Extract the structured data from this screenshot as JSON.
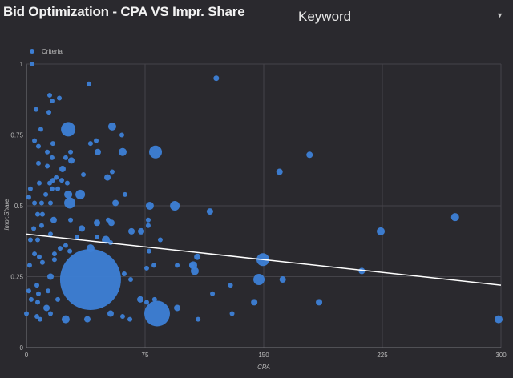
{
  "header": {
    "title": "Bid Optimization - CPA VS Impr. Share"
  },
  "selector": {
    "value": "Keyword",
    "icon": "caret-down-icon"
  },
  "chart_data": {
    "type": "scatter",
    "title": "Bid Optimization - CPA VS Impr. Share",
    "xlabel": "CPA",
    "ylabel": "Impr.Share",
    "xlim": [
      0,
      300
    ],
    "ylim": [
      0,
      1
    ],
    "xticks": [
      "0",
      "75",
      "150",
      "225",
      "300"
    ],
    "yticks": [
      "0",
      "0.25",
      "0.5",
      "0.75",
      "1"
    ],
    "grid": true,
    "legend": {
      "position": "top-left",
      "entries": [
        "Criteria"
      ]
    },
    "colors": {
      "point": "#3d7fd6",
      "trend": "#ffffff",
      "grid": "#444349",
      "background": "#2a292e"
    },
    "trendline": {
      "x": [
        0,
        300
      ],
      "y": [
        0.4,
        0.22
      ]
    },
    "series": [
      {
        "name": "Criteria",
        "points": [
          [
            40.5,
            0.24,
            38
          ],
          [
            82.6,
            0.12,
            16
          ],
          [
            26.4,
            0.77,
            9
          ],
          [
            81.6,
            0.69,
            8
          ],
          [
            149.5,
            0.31,
            8
          ],
          [
            147,
            0.24,
            7
          ],
          [
            93.8,
            0.5,
            6
          ],
          [
            78,
            0.5,
            5
          ],
          [
            120,
            0.95,
            3.5
          ],
          [
            3.5,
            1.0,
            3
          ],
          [
            39.5,
            0.93,
            3
          ],
          [
            179,
            0.68,
            4
          ],
          [
            160,
            0.62,
            4
          ],
          [
            224,
            0.41,
            5
          ],
          [
            271,
            0.46,
            5
          ],
          [
            298.5,
            0.1,
            5
          ],
          [
            212,
            0.27,
            4
          ],
          [
            185,
            0.16,
            4
          ],
          [
            162,
            0.24,
            4
          ],
          [
            144,
            0.16,
            4
          ],
          [
            130,
            0.12,
            3
          ],
          [
            129,
            0.22,
            3
          ],
          [
            117.6,
            0.19,
            3
          ],
          [
            116,
            0.48,
            4
          ],
          [
            108,
            0.32,
            4
          ],
          [
            105.4,
            0.29,
            5
          ],
          [
            106.4,
            0.27,
            5
          ],
          [
            95.3,
            0.29,
            3
          ],
          [
            80.6,
            0.29,
            3
          ],
          [
            77.5,
            0.34,
            3
          ],
          [
            81,
            0.17,
            3
          ],
          [
            108.5,
            0.1,
            3
          ],
          [
            84.6,
            0.38,
            3
          ],
          [
            77,
            0.45,
            3
          ],
          [
            77,
            0.43,
            3
          ],
          [
            72.5,
            0.41,
            4
          ],
          [
            66.4,
            0.41,
            4
          ],
          [
            62.3,
            0.54,
            3
          ],
          [
            56.3,
            0.51,
            4
          ],
          [
            76,
            0.28,
            3
          ],
          [
            95.3,
            0.14,
            4
          ],
          [
            104.4,
            0.29,
            3
          ],
          [
            72,
            0.17,
            4
          ],
          [
            76,
            0.16,
            3
          ],
          [
            65.4,
            0.1,
            3
          ],
          [
            60.8,
            0.11,
            3
          ],
          [
            53.2,
            0.12,
            4
          ],
          [
            38.5,
            0.1,
            4
          ],
          [
            24.8,
            0.1,
            5
          ],
          [
            61.8,
            0.26,
            3
          ],
          [
            65.9,
            0.24,
            3
          ],
          [
            54.2,
            0.78,
            5
          ],
          [
            60.3,
            0.75,
            3
          ],
          [
            60.8,
            0.69,
            5
          ],
          [
            45.1,
            0.69,
            4
          ],
          [
            40.5,
            0.72,
            3
          ],
          [
            44.1,
            0.73,
            3
          ],
          [
            54.2,
            0.62,
            3
          ],
          [
            51.2,
            0.6,
            4
          ],
          [
            36,
            0.61,
            3
          ],
          [
            14.7,
            0.89,
            3
          ],
          [
            16.2,
            0.87,
            3
          ],
          [
            20.8,
            0.88,
            3
          ],
          [
            6.1,
            0.84,
            3
          ],
          [
            14.2,
            0.83,
            3
          ],
          [
            9.1,
            0.77,
            3
          ],
          [
            5.1,
            0.73,
            3
          ],
          [
            7.6,
            0.71,
            3
          ],
          [
            16.7,
            0.72,
            3
          ],
          [
            13.2,
            0.69,
            3
          ],
          [
            27.9,
            0.69,
            3
          ],
          [
            16.2,
            0.67,
            3
          ],
          [
            24.8,
            0.67,
            3
          ],
          [
            28.4,
            0.66,
            4
          ],
          [
            7.6,
            0.65,
            3
          ],
          [
            13.2,
            0.64,
            3
          ],
          [
            22.8,
            0.63,
            4
          ],
          [
            18.8,
            0.6,
            3
          ],
          [
            16.7,
            0.59,
            3
          ],
          [
            22.3,
            0.59,
            3
          ],
          [
            25.8,
            0.58,
            3
          ],
          [
            8.1,
            0.58,
            3
          ],
          [
            14.7,
            0.58,
            3
          ],
          [
            16.2,
            0.56,
            3
          ],
          [
            19.8,
            0.56,
            3
          ],
          [
            2.5,
            0.56,
            3
          ],
          [
            12.2,
            0.54,
            3
          ],
          [
            1.5,
            0.53,
            3
          ],
          [
            26.4,
            0.54,
            5
          ],
          [
            34,
            0.54,
            6
          ],
          [
            27.4,
            0.51,
            7
          ],
          [
            15.2,
            0.51,
            3
          ],
          [
            5.1,
            0.51,
            3
          ],
          [
            9.6,
            0.51,
            3
          ],
          [
            7.1,
            0.47,
            3
          ],
          [
            10.1,
            0.47,
            3
          ],
          [
            17.2,
            0.45,
            4
          ],
          [
            27.9,
            0.45,
            3
          ],
          [
            51.7,
            0.45,
            3
          ],
          [
            53.7,
            0.44,
            4
          ],
          [
            44.6,
            0.44,
            4
          ],
          [
            35,
            0.42,
            4
          ],
          [
            4.6,
            0.42,
            3
          ],
          [
            9.6,
            0.43,
            3
          ],
          [
            15.2,
            0.4,
            3
          ],
          [
            2.5,
            0.38,
            3
          ],
          [
            7.1,
            0.38,
            3
          ],
          [
            31.9,
            0.39,
            3
          ],
          [
            44.6,
            0.39,
            3
          ],
          [
            50.2,
            0.38,
            5
          ],
          [
            53.2,
            0.37,
            3
          ],
          [
            21.3,
            0.35,
            3
          ],
          [
            24.8,
            0.36,
            3
          ],
          [
            27.4,
            0.34,
            3
          ],
          [
            40.5,
            0.35,
            5
          ],
          [
            5.1,
            0.33,
            3
          ],
          [
            8.1,
            0.32,
            3
          ],
          [
            17.7,
            0.33,
            3
          ],
          [
            17.7,
            0.31,
            3
          ],
          [
            2,
            0.29,
            3
          ],
          [
            10.1,
            0.3,
            3
          ],
          [
            15.2,
            0.25,
            4
          ],
          [
            6.6,
            0.22,
            3
          ],
          [
            1.5,
            0.2,
            3
          ],
          [
            7.6,
            0.19,
            3
          ],
          [
            13.7,
            0.2,
            3
          ],
          [
            3,
            0.17,
            3
          ],
          [
            7.1,
            0.16,
            3
          ],
          [
            19.8,
            0.17,
            3
          ],
          [
            12.7,
            0.14,
            4
          ],
          [
            15.2,
            0.12,
            3
          ],
          [
            0,
            0.12,
            3
          ],
          [
            6.6,
            0.11,
            3
          ],
          [
            8.6,
            0.1,
            3
          ]
        ]
      }
    ]
  }
}
